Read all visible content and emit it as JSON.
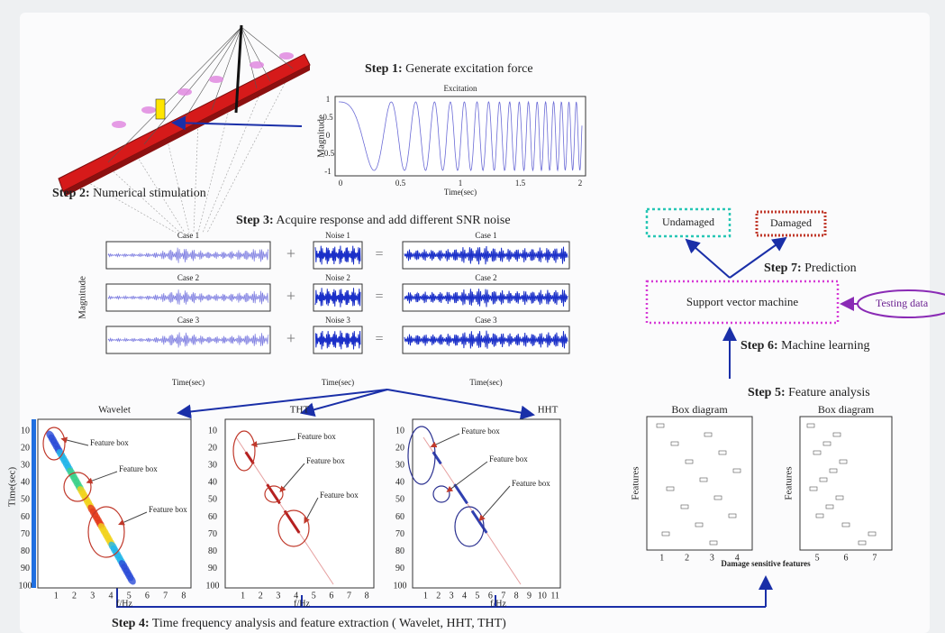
{
  "steps": [
    {
      "label": "Step 1:",
      "text": "Generate excitation force"
    },
    {
      "label": "Step 2:",
      "text": "Numerical stimulation"
    },
    {
      "label": "Step 3:",
      "text": "Acquire response and add different SNR noise"
    },
    {
      "label": "Step 4:",
      "text": "Time frequency analysis and feature extraction ( Wavelet, HHT, THT)"
    },
    {
      "label": "Step 5:",
      "text": "Feature analysis"
    },
    {
      "label": "Step 6:",
      "text": "Machine learning"
    },
    {
      "label": "Step 7:",
      "text": "Prediction"
    }
  ],
  "excitation": {
    "title": "Excitation",
    "ylabel": "Magnitude",
    "xlabel": "Time(sec)",
    "yticks": [
      1,
      0.5,
      0,
      -0.5,
      -1
    ],
    "xticks": [
      0,
      0.5,
      1,
      1.5,
      2
    ]
  },
  "response": {
    "ylabel": "Magnitude",
    "plus": "+",
    "equals": "=",
    "rows": [
      {
        "case": "Case 1",
        "noise": "Noise 1",
        "result": "Case 1"
      },
      {
        "case": "Case 2",
        "noise": "Noise 2",
        "result": "Case 2"
      },
      {
        "case": "Case 3",
        "noise": "Noise 3",
        "result": "Case 3"
      }
    ],
    "xlabels": [
      "Time(sec)",
      "Time(sec)",
      "Time(sec)"
    ]
  },
  "tf_panels": [
    {
      "title": "Wavelet",
      "ylabel": "Time(sec)",
      "xlabel": "f/Hz",
      "yticks": [
        10,
        20,
        30,
        40,
        50,
        60,
        70,
        80,
        90,
        100
      ],
      "xticks": [
        1,
        2,
        3,
        4,
        5,
        6,
        7,
        8
      ],
      "feature_boxes": [
        "Feature box",
        "Feature box",
        "Feature box"
      ]
    },
    {
      "title": "THT",
      "xlabel": "f/Hz",
      "yticks": [
        10,
        20,
        30,
        40,
        50,
        60,
        70,
        80,
        90,
        100
      ],
      "xticks": [
        1,
        2,
        3,
        4,
        5,
        6,
        7,
        8
      ],
      "feature_boxes": [
        "Feature box",
        "Feature box",
        "Feature box"
      ]
    },
    {
      "title": "HHT",
      "xlabel": "f/Hz",
      "yticks": [
        10,
        20,
        30,
        40,
        50,
        60,
        70,
        80,
        90,
        100
      ],
      "xticks": [
        1,
        2,
        3,
        4,
        5,
        6,
        7,
        8,
        9,
        10,
        11
      ],
      "feature_boxes": [
        "Feature box",
        "Feature box",
        "Feature box"
      ]
    }
  ],
  "box_diagrams": [
    {
      "title": "Box diagram",
      "ylabel": "Features",
      "xticks": [
        1,
        2,
        3,
        4
      ]
    },
    {
      "title": "Box diagram",
      "ylabel": "Features",
      "xticks": [
        5,
        6,
        7
      ]
    }
  ],
  "box_xlabel": "Damage sensitive features",
  "classifier": {
    "model": "Support vector machine",
    "input": "Testing data",
    "outputs": [
      "Undamaged",
      "Damaged"
    ]
  }
}
